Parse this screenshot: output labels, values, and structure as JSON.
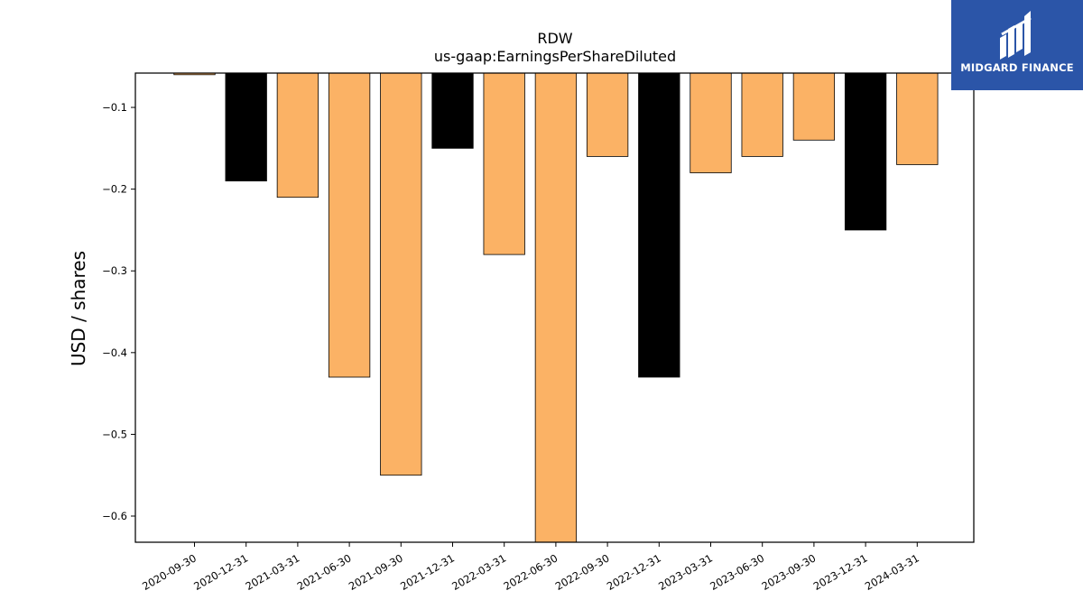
{
  "brand": {
    "name": "MIDGARD FINANCE",
    "bg": "#2b55a8"
  },
  "colors": {
    "annual": "#000000",
    "quarterly": "#fbb265"
  },
  "chart_data": {
    "type": "bar",
    "title": "RDW",
    "subtitle": "us-gaap:EarningsPerShareDiluted",
    "xlabel": "",
    "ylabel": "USD / shares",
    "ylim": [
      -0.632,
      -0.058
    ],
    "yticks": [
      -0.1,
      -0.2,
      -0.3,
      -0.4,
      -0.5,
      -0.6
    ],
    "ytick_labels": [
      "−0.1",
      "−0.2",
      "−0.3",
      "−0.4",
      "−0.5",
      "−0.6"
    ],
    "grid": false,
    "categories": [
      "2020-09-30",
      "2020-12-31",
      "2021-03-31",
      "2021-06-30",
      "2021-09-30",
      "2021-12-31",
      "2022-03-31",
      "2022-06-30",
      "2022-09-30",
      "2022-12-31",
      "2023-03-31",
      "2023-06-30",
      "2023-09-30",
      "2023-12-31",
      "2024-03-31"
    ],
    "values": [
      -0.06,
      -0.19,
      -0.21,
      -0.43,
      -0.55,
      -0.15,
      -0.28,
      -0.65,
      -0.16,
      -0.43,
      -0.18,
      -0.16,
      -0.14,
      -0.25,
      -0.17
    ],
    "bar_colors": [
      "#fbb265",
      "#000000",
      "#fbb265",
      "#fbb265",
      "#fbb265",
      "#000000",
      "#fbb265",
      "#fbb265",
      "#fbb265",
      "#000000",
      "#fbb265",
      "#fbb265",
      "#fbb265",
      "#000000",
      "#fbb265"
    ]
  }
}
